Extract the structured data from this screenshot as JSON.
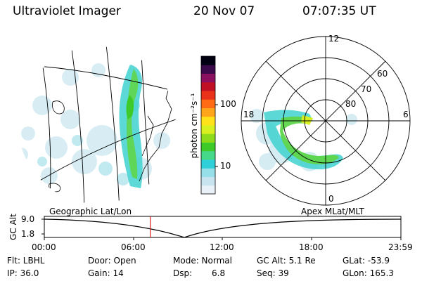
{
  "header": {
    "title": "Ultraviolet Imager",
    "date": "20 Nov 07",
    "time": "07:07:35 UT"
  },
  "colorbar": {
    "unit_label": "photon cm⁻²s⁻¹",
    "ticks": [
      "100",
      "10"
    ],
    "colors": [
      "#e8f2f8",
      "#c8e4ef",
      "#96dfe8",
      "#2fd0d8",
      "#47d98a",
      "#3ecb2a",
      "#8edb1c",
      "#d8f020",
      "#ffe21a",
      "#ffa51a",
      "#ff6a14",
      "#e8321a",
      "#c01024",
      "#8b1060",
      "#3a0a4a",
      "#000010"
    ]
  },
  "polar_plot": {
    "mlt_labels": [
      "12",
      "18",
      "6",
      "0"
    ],
    "lat_labels": [
      "60",
      "70",
      "80"
    ]
  },
  "altitude_plot": {
    "left_label": "Geographic Lat/Lon",
    "right_label": "Apex  MLat/MLT",
    "axis_label": "GC Alt",
    "y_ticks": [
      "9.0",
      "1.8"
    ],
    "x_ticks": [
      "00:00",
      "06:00",
      "12:00",
      "18:00",
      "23:59"
    ],
    "current_time_marker_hours": 7.13,
    "marker_color": "#e02020"
  },
  "status": {
    "flt": "Flt: LBHL",
    "ip": "IP: 36.0",
    "door": "Door: Open",
    "gain": "Gain: 14",
    "mode": "Mode: Normal",
    "dsp_label": "Dsp:",
    "dsp_value": "6.8",
    "gc_alt": "GC Alt: 5.1 Re",
    "seq": "Seq: 39",
    "glat": "GLat: -53.9",
    "glon": "GLon: 165.3"
  }
}
